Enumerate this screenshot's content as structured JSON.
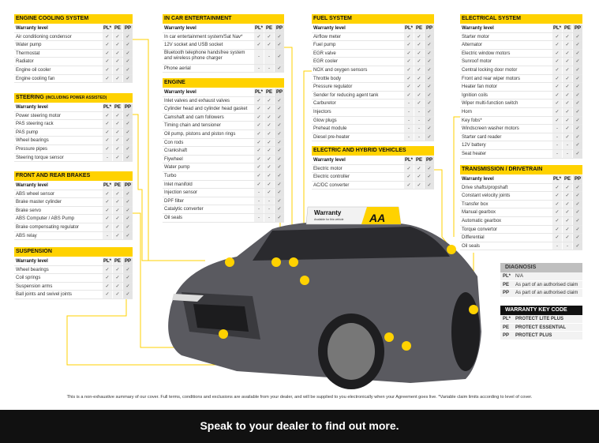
{
  "colors": {
    "accent": "#ffd200",
    "dark": "#111111",
    "diagnosis_header": "#bfbfbf"
  },
  "columns": {
    "label": "Warranty level",
    "pl": "PL*",
    "pe": "PE",
    "pp": "PP"
  },
  "tables": [
    {
      "title": "ENGINE COOLING SYSTEM",
      "rows": [
        [
          "Air conditioning condensor",
          "✓",
          "✓",
          "✓"
        ],
        [
          "Water pump",
          "✓",
          "✓",
          "✓"
        ],
        [
          "Thermostat",
          "✓",
          "✓",
          "✓"
        ],
        [
          "Radiator",
          "✓",
          "✓",
          "✓"
        ],
        [
          "Engine oil cooler",
          "✓",
          "✓",
          "✓"
        ],
        [
          "Engine cooling fan",
          "✓",
          "✓",
          "✓"
        ]
      ]
    },
    {
      "title": "STEERING",
      "subtitle": "(INCLUDING POWER ASSISTED)",
      "rows": [
        [
          "Power steering motor",
          "✓",
          "✓",
          "✓"
        ],
        [
          "PAS steering rack",
          "✓",
          "✓",
          "✓"
        ],
        [
          "PAS pump",
          "✓",
          "✓",
          "✓"
        ],
        [
          "Wheel bearings",
          "✓",
          "✓",
          "✓"
        ],
        [
          "Pressure pipes",
          "✓",
          "✓",
          "✓"
        ],
        [
          "Steering torque sensor",
          "-",
          "✓",
          "✓"
        ]
      ]
    },
    {
      "title": "FRONT AND REAR BRAKES",
      "rows": [
        [
          "ABS wheel sensor",
          "✓",
          "✓",
          "✓"
        ],
        [
          "Brake master cylinder",
          "✓",
          "✓",
          "✓"
        ],
        [
          "Brake servo",
          "✓",
          "✓",
          "✓"
        ],
        [
          "ABS Computer / ABS Pump",
          "✓",
          "✓",
          "✓"
        ],
        [
          "Brake compensating regulator",
          "✓",
          "✓",
          "✓"
        ],
        [
          "ABS relay",
          "-",
          "✓",
          "✓"
        ]
      ]
    },
    {
      "title": "SUSPENSION",
      "rows": [
        [
          "Wheel bearings",
          "✓",
          "✓",
          "✓"
        ],
        [
          "Coil springs",
          "✓",
          "✓",
          "✓"
        ],
        [
          "Suspension arms",
          "✓",
          "✓",
          "✓"
        ],
        [
          "Ball joints and swivel joints",
          "✓",
          "✓",
          "✓"
        ]
      ]
    },
    {
      "title": "IN CAR ENTERTAINMENT",
      "rows": [
        [
          "In car entertainment system/Sat Nav*",
          "✓",
          "✓",
          "✓"
        ],
        [
          "12V socket and USB socket",
          "✓",
          "✓",
          "✓"
        ],
        [
          "Bluetooth telephone handsfree system and wireless phone charger",
          "-",
          "-",
          "✓"
        ],
        [
          "Phone aerial",
          "-",
          "-",
          "✓"
        ]
      ]
    },
    {
      "title": "ENGINE",
      "rows": [
        [
          "Inlet valves and exhaust valves",
          "✓",
          "✓",
          "✓"
        ],
        [
          "Cylinder head and cylinder head gasket",
          "✓",
          "✓",
          "✓"
        ],
        [
          "Camshaft and cam followers",
          "✓",
          "✓",
          "✓"
        ],
        [
          "Timing chain and tensioner",
          "✓",
          "✓",
          "✓"
        ],
        [
          "Oil pump, pistons and piston rings",
          "✓",
          "✓",
          "✓"
        ],
        [
          "Con rods",
          "✓",
          "✓",
          "✓"
        ],
        [
          "Crankshaft",
          "✓",
          "✓",
          "✓"
        ],
        [
          "Flywheel",
          "✓",
          "✓",
          "✓"
        ],
        [
          "Water pump",
          "✓",
          "✓",
          "✓"
        ],
        [
          "Turbo",
          "✓",
          "✓",
          "✓"
        ],
        [
          "Inlet manifold",
          "✓",
          "✓",
          "✓"
        ],
        [
          "Injection sensor",
          "-",
          "✓",
          "✓"
        ],
        [
          "DPF filter",
          "-",
          "-",
          "✓"
        ],
        [
          "Catalytic converter",
          "-",
          "-",
          "✓"
        ],
        [
          "Oil seals",
          "-",
          "-",
          "✓"
        ]
      ]
    },
    {
      "title": "FUEL SYSTEM",
      "rows": [
        [
          "Airflow meter",
          "✓",
          "✓",
          "✓"
        ],
        [
          "Fuel pump",
          "✓",
          "✓",
          "✓"
        ],
        [
          "EGR valve",
          "✓",
          "✓",
          "✓"
        ],
        [
          "EGR cooler",
          "✓",
          "✓",
          "✓"
        ],
        [
          "NOX and oxygen sensors",
          "✓",
          "✓",
          "✓"
        ],
        [
          "Throttle body",
          "✓",
          "✓",
          "✓"
        ],
        [
          "Pressure regulator",
          "✓",
          "✓",
          "✓"
        ],
        [
          "Sender for reducing agent tank",
          "✓",
          "✓",
          "✓"
        ],
        [
          "Carburetor",
          "-",
          "✓",
          "✓"
        ],
        [
          "Injectors",
          "-",
          "-",
          "✓"
        ],
        [
          "Glow plugs",
          "-",
          "-",
          "✓"
        ],
        [
          "Preheat module",
          "-",
          "-",
          "✓"
        ],
        [
          "Diesel pre-heater",
          "-",
          "-",
          "✓"
        ]
      ]
    },
    {
      "title": "ELECTRIC AND HYBRID VEHICLES",
      "rows": [
        [
          "Electric motor",
          "✓",
          "✓",
          "✓"
        ],
        [
          "Electric controller",
          "✓",
          "✓",
          "✓"
        ],
        [
          "AC/DC converter",
          "✓",
          "✓",
          "✓"
        ]
      ]
    },
    {
      "title": "ELECTRICAL SYSTEM",
      "rows": [
        [
          "Starter motor",
          "✓",
          "✓",
          "✓"
        ],
        [
          "Alternator",
          "✓",
          "✓",
          "✓"
        ],
        [
          "Electric window motors",
          "✓",
          "✓",
          "✓"
        ],
        [
          "Sunroof motor",
          "✓",
          "✓",
          "✓"
        ],
        [
          "Central locking door motor",
          "✓",
          "✓",
          "✓"
        ],
        [
          "Front and rear wiper motors",
          "✓",
          "✓",
          "✓"
        ],
        [
          "Heater fan motor",
          "✓",
          "✓",
          "✓"
        ],
        [
          "Ignition coils",
          "✓",
          "✓",
          "✓"
        ],
        [
          "Wiper multi-function switch",
          "✓",
          "✓",
          "✓"
        ],
        [
          "Horn",
          "✓",
          "✓",
          "✓"
        ],
        [
          "Key fobs*",
          "✓",
          "✓",
          "✓"
        ],
        [
          "Windscreen washer motors",
          "-",
          "✓",
          "✓"
        ],
        [
          "Starter card reader",
          "-",
          "✓",
          "✓"
        ],
        [
          "12V battery",
          "-",
          "-",
          "✓"
        ],
        [
          "Seat heater",
          "-",
          "-",
          "✓"
        ]
      ]
    },
    {
      "title": "TRANSMISSION / DRIVETRAIN",
      "rows": [
        [
          "Drive shafts/propshaft",
          "✓",
          "✓",
          "✓"
        ],
        [
          "Constant velocity joints",
          "✓",
          "✓",
          "✓"
        ],
        [
          "Transfer box",
          "✓",
          "✓",
          "✓"
        ],
        [
          "Manual gearbox",
          "✓",
          "✓",
          "✓"
        ],
        [
          "Automatic gearbox",
          "✓",
          "✓",
          "✓"
        ],
        [
          "Torque convertor",
          "✓",
          "✓",
          "✓"
        ],
        [
          "Differential",
          "✓",
          "✓",
          "✓"
        ],
        [
          "Oil seals",
          "-",
          "-",
          "✓"
        ]
      ]
    }
  ],
  "diagnosis": {
    "title": "DIAGNOSIS",
    "rows": [
      [
        "PL*",
        "N/A"
      ],
      [
        "PE",
        "As part of an authorised claim"
      ],
      [
        "PP",
        "As part of an authorised claim"
      ]
    ]
  },
  "key_code": {
    "title": "WARRANTY KEY CODE",
    "rows": [
      [
        "PL*",
        "PROTECT LITE PLUS"
      ],
      [
        "PE",
        "PROTECT ESSENTIAL"
      ],
      [
        "PP",
        "PROTECT PLUS"
      ]
    ]
  },
  "roof_sign": {
    "title": "Warranty",
    "subtitle": "Available for this vehicle",
    "logo": "AA"
  },
  "disclaimer": "This is a non-exhaustive summary of our cover. Full terms, conditions and exclusions are available from your dealer, and will be supplied to you electronically when your Agreement goes live. *Variable claim  limits according to level of cover.",
  "footer": "Speak to your dealer to find out more."
}
